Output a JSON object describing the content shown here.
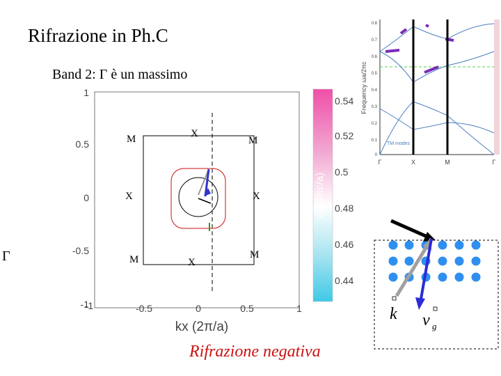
{
  "slide": {
    "title": "Rifrazione in Ph.C",
    "subtitle": "Band 2: Γ è un massimo",
    "side_label": "Γ",
    "caption": "Rifrazione negativa"
  },
  "contour_plot": {
    "x_ticks": [
      "-1",
      "-0.5",
      "0",
      "0.5",
      "1"
    ],
    "y_ticks": [
      "1",
      "0.5",
      "0",
      "-0.5",
      "-1"
    ],
    "xlabel": "kx (2π/a)",
    "bz_labels": {
      "top_left": "M",
      "top_center": "X",
      "top_right": "M",
      "mid_left": "X",
      "mid_right": "X",
      "bottom_left": "M",
      "bottom_center": "X",
      "bottom_right": "M"
    },
    "colorbar_label": "ω (2πc/a)",
    "colorbar_ticks": [
      "0.54",
      "0.52",
      "0.5",
      "0.48",
      "0.46",
      "0.44"
    ],
    "colorbar_colors": [
      "#ef4fa8",
      "#f2a9d2",
      "#ffffff",
      "#a8e4f0",
      "#3ec9e6"
    ]
  },
  "band_diagram": {
    "ylabel": "Frequency ωa/2πc",
    "y_ticks": [
      "0.8",
      "0.7",
      "0.6",
      "0.5",
      "0.4",
      "0.3",
      "0.2",
      "0.1",
      "0"
    ],
    "x_ticks": [
      "Γ",
      "X",
      "M",
      "Γ"
    ],
    "legend": "TM modes"
  },
  "refraction_diagram": {
    "k_label": "k",
    "vg_label": "v",
    "vg_subscript": "g",
    "colors": {
      "incident": "#000000",
      "k_vector": "#a0a0a0",
      "vg_vector": "#2b2bd6",
      "dots": "#2f8ff0"
    }
  }
}
